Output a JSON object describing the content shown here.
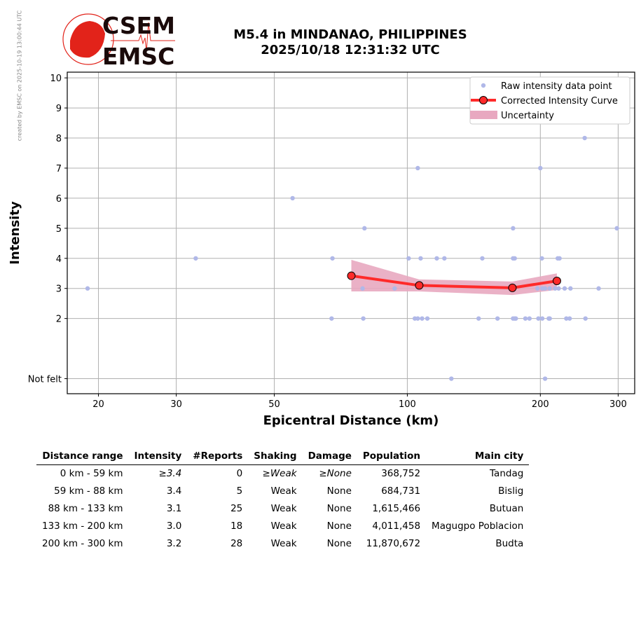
{
  "side_note": "created by EMSC on 2025-10-19 13:00:44 UTC",
  "logo": {
    "top": "CSEM",
    "bottom": "EMSC"
  },
  "title_line1": "M5.4 in MINDANAO, PHILIPPINES",
  "title_line2": "2025/10/18 12:31:32 UTC",
  "colors": {
    "raw": "#b0b8e8",
    "curve": "#ff2a2a",
    "band": "#e8a8c0",
    "logo": "#e2231a"
  },
  "chart_data": {
    "type": "scatter",
    "xlabel": "Epicentral Distance (km)",
    "ylabel": "Intensity",
    "xscale": "log",
    "xlim": [
      17,
      327
    ],
    "ylim": [
      -0.5,
      10.19
    ],
    "xticks": [
      20,
      30,
      50,
      100,
      200,
      300
    ],
    "yticks": [
      {
        "v": 0,
        "label": "Not felt"
      },
      {
        "v": 2,
        "label": "2"
      },
      {
        "v": 3,
        "label": "3"
      },
      {
        "v": 4,
        "label": "4"
      },
      {
        "v": 5,
        "label": "5"
      },
      {
        "v": 6,
        "label": "6"
      },
      {
        "v": 7,
        "label": "7"
      },
      {
        "v": 8,
        "label": "8"
      },
      {
        "v": 9,
        "label": "9"
      },
      {
        "v": 10,
        "label": "10"
      }
    ],
    "grid": true,
    "legend_position": "top-right",
    "legend": [
      "Raw intensity data point",
      "Corrected Intensity Curve",
      "Uncertainty"
    ],
    "raw_points": [
      [
        18.9,
        3
      ],
      [
        33.2,
        4
      ],
      [
        55,
        6
      ],
      [
        67.7,
        4
      ],
      [
        67.4,
        2
      ],
      [
        80,
        5
      ],
      [
        79.2,
        3
      ],
      [
        79.5,
        2
      ],
      [
        105.6,
        7
      ],
      [
        100.7,
        4
      ],
      [
        107.2,
        4
      ],
      [
        93.6,
        3
      ],
      [
        104,
        2
      ],
      [
        105.6,
        2
      ],
      [
        108,
        2
      ],
      [
        111,
        2
      ],
      [
        116.6,
        4
      ],
      [
        121.3,
        4
      ],
      [
        125.8,
        0
      ],
      [
        147.8,
        4
      ],
      [
        145,
        2
      ],
      [
        160,
        2
      ],
      [
        173.5,
        5
      ],
      [
        173.5,
        4
      ],
      [
        175,
        4
      ],
      [
        173.5,
        2
      ],
      [
        175,
        2
      ],
      [
        176,
        2
      ],
      [
        173,
        3
      ],
      [
        200,
        7
      ],
      [
        201.6,
        4
      ],
      [
        198,
        2
      ],
      [
        202,
        2
      ],
      [
        185,
        2
      ],
      [
        189,
        2
      ],
      [
        210,
        2
      ],
      [
        209,
        2
      ],
      [
        233,
        2
      ],
      [
        229,
        2
      ],
      [
        205,
        0
      ],
      [
        197,
        3
      ],
      [
        202,
        3
      ],
      [
        205,
        3
      ],
      [
        210,
        3
      ],
      [
        216,
        3
      ],
      [
        220,
        3
      ],
      [
        227,
        3
      ],
      [
        234,
        3
      ],
      [
        221,
        4
      ],
      [
        219,
        4
      ],
      [
        252,
        8
      ],
      [
        271,
        3
      ],
      [
        253,
        2
      ],
      [
        298,
        5
      ]
    ],
    "curve": [
      [
        74.7,
        3.42
      ],
      [
        106.4,
        3.1
      ],
      [
        172.9,
        3.02
      ],
      [
        218,
        3.25
      ]
    ],
    "band_upper": [
      [
        74.7,
        3.95
      ],
      [
        106.4,
        3.3
      ],
      [
        172.9,
        3.23
      ],
      [
        218,
        3.5
      ]
    ],
    "band_lower": [
      [
        74.7,
        2.9
      ],
      [
        106.4,
        2.9
      ],
      [
        172.9,
        2.78
      ],
      [
        218,
        2.95
      ]
    ]
  },
  "table": {
    "headers": [
      "Distance range",
      "Intensity",
      "#Reports",
      "Shaking",
      "Damage",
      "Population",
      "Main city"
    ],
    "rows": [
      [
        "0 km -   59 km",
        "≥3.4",
        "0",
        "≥Weak",
        "≥None",
        "368,752",
        "Tandag"
      ],
      [
        "59 km -   88 km",
        "3.4",
        "5",
        "Weak",
        "None",
        "684,731",
        "Bislig"
      ],
      [
        "88 km -  133 km",
        "3.1",
        "25",
        "Weak",
        "None",
        "1,615,466",
        "Butuan"
      ],
      [
        "133 km -  200 km",
        "3.0",
        "18",
        "Weak",
        "None",
        "4,011,458",
        "Magugpo Poblacion"
      ],
      [
        "200 km -  300 km",
        "3.2",
        "28",
        "Weak",
        "None",
        "11,870,672",
        "Budta"
      ]
    ]
  }
}
